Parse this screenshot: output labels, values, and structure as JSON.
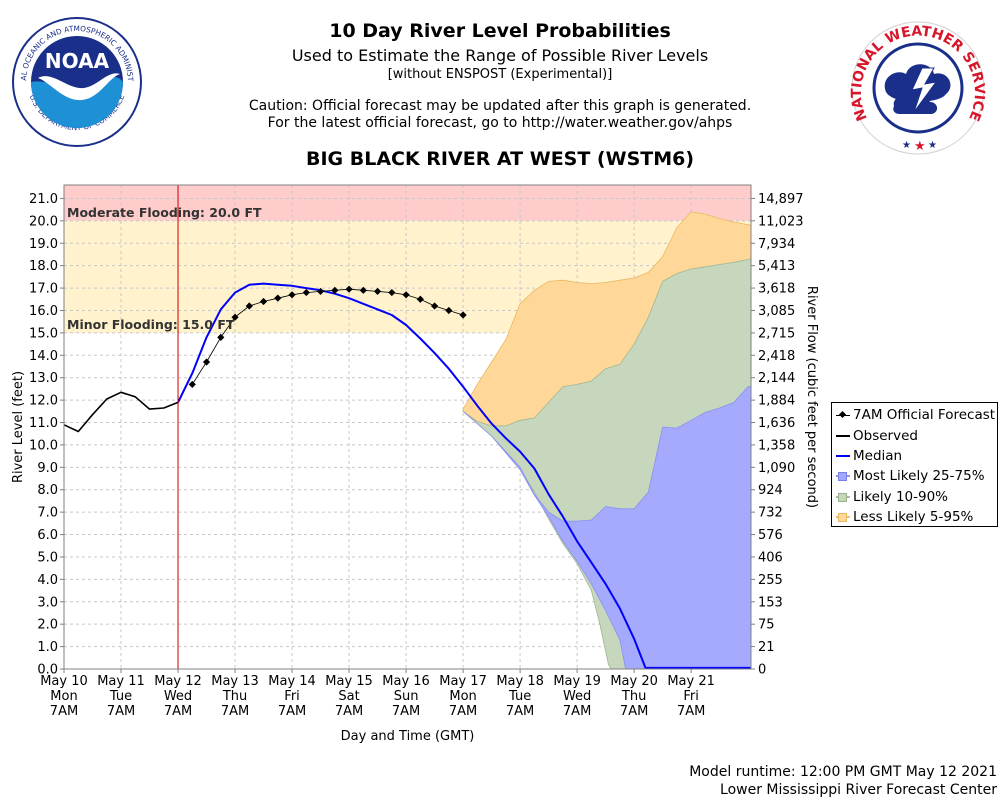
{
  "header": {
    "title": "10 Day River Level Probabilities",
    "subtitle": "Used to Estimate the Range of Possible River Levels",
    "subtitle2": "[without ENSPOST (Experimental)]",
    "caution_line1": "Caution: Official forecast may be updated after this graph is generated.",
    "caution_line2": "For the latest official forecast, go to http://water.weather.gov/ahps",
    "station": "BIG BLACK RIVER AT WEST (WSTM6)"
  },
  "logos": {
    "noaa_text": "NOAA",
    "noaa_ring_top": "NATIONAL OCEANIC AND ATMOSPHERIC ADMINISTRATION",
    "noaa_ring_bottom": "U.S. DEPARTMENT OF COMMERCE",
    "nws_ring": "NATIONAL WEATHER SERVICE"
  },
  "footer": {
    "runtime": "Model runtime: 12:00 PM GMT May 12 2021",
    "center": "Lower Mississippi River Forecast Center"
  },
  "colors": {
    "moderate_band": "#ffcccc",
    "minor_band": "#fff2cc",
    "less_likely": "#ffd799",
    "likely": "#c6d7bd",
    "most_likely": "#a3a8ff",
    "median": "#0000ff",
    "observed": "#000000",
    "official": "#000000",
    "now_line": "#cc0000"
  },
  "chart_data": {
    "type": "area",
    "xlabel": "Day and Time (GMT)",
    "ylabel": "River Level (feet)",
    "y2label": "River Flow (cubic feet per second)",
    "ylim": [
      0,
      21.6
    ],
    "xlim_days": [
      0,
      12.05
    ],
    "yticks": [
      0.0,
      1.0,
      2.0,
      3.0,
      4.0,
      5.0,
      6.0,
      7.0,
      8.0,
      9.0,
      10.0,
      11.0,
      12.0,
      13.0,
      14.0,
      15.0,
      16.0,
      17.0,
      18.0,
      19.0,
      20.0,
      21.0
    ],
    "y2ticks": [
      {
        "y": 0,
        "label": "0"
      },
      {
        "y": 1,
        "label": "21"
      },
      {
        "y": 2,
        "label": "75"
      },
      {
        "y": 3,
        "label": "153"
      },
      {
        "y": 4,
        "label": "255"
      },
      {
        "y": 5,
        "label": "406"
      },
      {
        "y": 6,
        "label": "576"
      },
      {
        "y": 7,
        "label": "732"
      },
      {
        "y": 8,
        "label": "924"
      },
      {
        "y": 9,
        "label": "1,090"
      },
      {
        "y": 10,
        "label": "1,358"
      },
      {
        "y": 11,
        "label": "1,636"
      },
      {
        "y": 12,
        "label": "1,884"
      },
      {
        "y": 13,
        "label": "2,144"
      },
      {
        "y": 14,
        "label": "2,418"
      },
      {
        "y": 15,
        "label": "2,715"
      },
      {
        "y": 16,
        "label": "3,085"
      },
      {
        "y": 17,
        "label": "3,618"
      },
      {
        "y": 18,
        "label": "5,413"
      },
      {
        "y": 19,
        "label": "7,934"
      },
      {
        "y": 20,
        "label": "11,023"
      },
      {
        "y": 21,
        "label": "14,897"
      }
    ],
    "x_ticks": [
      {
        "day": 0,
        "date": "May 10",
        "dow": "Mon",
        "time": "7AM"
      },
      {
        "day": 1,
        "date": "May 11",
        "dow": "Tue",
        "time": "7AM"
      },
      {
        "day": 2,
        "date": "May 12",
        "dow": "Wed",
        "time": "7AM"
      },
      {
        "day": 3,
        "date": "May 13",
        "dow": "Thu",
        "time": "7AM"
      },
      {
        "day": 4,
        "date": "May 14",
        "dow": "Fri",
        "time": "7AM"
      },
      {
        "day": 5,
        "date": "May 15",
        "dow": "Sat",
        "time": "7AM"
      },
      {
        "day": 6,
        "date": "May 16",
        "dow": "Sun",
        "time": "7AM"
      },
      {
        "day": 7,
        "date": "May 17",
        "dow": "Mon",
        "time": "7AM"
      },
      {
        "day": 8,
        "date": "May 18",
        "dow": "Tue",
        "time": "7AM"
      },
      {
        "day": 9,
        "date": "May 19",
        "dow": "Wed",
        "time": "7AM"
      },
      {
        "day": 10,
        "date": "May 20",
        "dow": "Thu",
        "time": "7AM"
      },
      {
        "day": 11,
        "date": "May 21",
        "dow": "Fri",
        "time": "7AM"
      }
    ],
    "now_day": 2.0,
    "flood_stages": [
      {
        "name": "Moderate Flooding",
        "label": "Moderate Flooding: 20.0 FT",
        "from": 20.0,
        "to": 21.6
      },
      {
        "name": "Minor Flooding",
        "label": "Minor Flooding: 15.0 FT",
        "from": 15.0,
        "to": 20.0
      }
    ],
    "series": [
      {
        "name": "Less Likely 5-95%",
        "kind": "band",
        "upper": [
          [
            7.0,
            11.6
          ],
          [
            7.25,
            12.7
          ],
          [
            7.5,
            13.7
          ],
          [
            7.75,
            14.7
          ],
          [
            8.0,
            16.3
          ],
          [
            8.25,
            16.9
          ],
          [
            8.5,
            17.3
          ],
          [
            8.75,
            17.35
          ],
          [
            9.0,
            17.25
          ],
          [
            9.25,
            17.2
          ],
          [
            9.5,
            17.25
          ],
          [
            9.75,
            17.35
          ],
          [
            10.0,
            17.45
          ],
          [
            10.25,
            17.7
          ],
          [
            10.5,
            18.4
          ],
          [
            10.75,
            19.7
          ],
          [
            11.0,
            20.4
          ],
          [
            11.25,
            20.3
          ],
          [
            11.5,
            20.1
          ],
          [
            11.75,
            19.95
          ],
          [
            12.05,
            19.8
          ]
        ],
        "lower": [
          [
            7.0,
            11.5
          ],
          [
            7.5,
            10.4
          ],
          [
            8.0,
            9.0
          ],
          [
            8.25,
            8.0
          ],
          [
            8.5,
            6.8
          ],
          [
            8.75,
            5.7
          ],
          [
            9.0,
            4.8
          ],
          [
            9.25,
            3.6
          ],
          [
            9.4,
            2.0
          ],
          [
            9.55,
            0.2
          ],
          [
            9.6,
            0.0
          ],
          [
            12.05,
            0.0
          ]
        ]
      },
      {
        "name": "Likely 10-90%",
        "kind": "band",
        "upper": [
          [
            7.0,
            11.5
          ],
          [
            7.25,
            11.05
          ],
          [
            7.5,
            10.85
          ],
          [
            7.75,
            10.85
          ],
          [
            8.0,
            11.1
          ],
          [
            8.25,
            11.2
          ],
          [
            8.5,
            11.9
          ],
          [
            8.75,
            12.6
          ],
          [
            9.0,
            12.7
          ],
          [
            9.25,
            12.85
          ],
          [
            9.5,
            13.4
          ],
          [
            9.75,
            13.6
          ],
          [
            10.0,
            14.5
          ],
          [
            10.25,
            15.7
          ],
          [
            10.5,
            17.3
          ],
          [
            10.75,
            17.65
          ],
          [
            11.0,
            17.85
          ],
          [
            11.25,
            17.95
          ],
          [
            11.5,
            18.05
          ],
          [
            11.75,
            18.15
          ],
          [
            12.05,
            18.3
          ]
        ],
        "lower": [
          [
            7.0,
            11.5
          ],
          [
            7.5,
            10.4
          ],
          [
            8.0,
            8.9
          ],
          [
            8.25,
            7.9
          ],
          [
            8.5,
            6.7
          ],
          [
            8.75,
            5.6
          ],
          [
            9.0,
            4.7
          ],
          [
            9.25,
            3.5
          ],
          [
            9.4,
            2.0
          ],
          [
            9.55,
            0.2
          ],
          [
            9.6,
            0.0
          ],
          [
            12.05,
            0.0
          ]
        ]
      },
      {
        "name": "Most Likely 25-75%",
        "kind": "band",
        "upper": [
          [
            7.0,
            11.5
          ],
          [
            7.5,
            10.4
          ],
          [
            8.0,
            9.0
          ],
          [
            8.25,
            7.8
          ],
          [
            8.5,
            7.0
          ],
          [
            8.75,
            6.6
          ],
          [
            9.0,
            6.6
          ],
          [
            9.25,
            6.65
          ],
          [
            9.5,
            7.25
          ],
          [
            9.75,
            7.15
          ],
          [
            10.0,
            7.15
          ],
          [
            10.25,
            7.9
          ],
          [
            10.5,
            10.8
          ],
          [
            10.75,
            10.75
          ],
          [
            11.0,
            11.1
          ],
          [
            11.25,
            11.45
          ],
          [
            11.5,
            11.65
          ],
          [
            11.75,
            11.9
          ],
          [
            12.0,
            12.6
          ],
          [
            12.05,
            12.6
          ]
        ],
        "lower": [
          [
            7.0,
            11.5
          ],
          [
            7.5,
            10.4
          ],
          [
            8.0,
            8.9
          ],
          [
            8.25,
            7.75
          ],
          [
            8.5,
            6.8
          ],
          [
            8.75,
            5.7
          ],
          [
            9.0,
            4.8
          ],
          [
            9.25,
            3.8
          ],
          [
            9.5,
            2.6
          ],
          [
            9.75,
            1.3
          ],
          [
            9.85,
            0.0
          ],
          [
            12.05,
            0.0
          ]
        ]
      },
      {
        "name": "Observed",
        "kind": "line",
        "points": [
          [
            0.0,
            10.9
          ],
          [
            0.25,
            10.6
          ],
          [
            0.5,
            11.35
          ],
          [
            0.75,
            12.05
          ],
          [
            1.0,
            12.35
          ],
          [
            1.25,
            12.15
          ],
          [
            1.5,
            11.6
          ],
          [
            1.75,
            11.65
          ],
          [
            2.0,
            11.9
          ]
        ]
      },
      {
        "name": "Median",
        "kind": "line",
        "points": [
          [
            2.0,
            11.9
          ],
          [
            2.25,
            13.2
          ],
          [
            2.5,
            14.8
          ],
          [
            2.75,
            16.05
          ],
          [
            3.0,
            16.8
          ],
          [
            3.25,
            17.15
          ],
          [
            3.5,
            17.2
          ],
          [
            3.75,
            17.15
          ],
          [
            4.0,
            17.1
          ],
          [
            4.25,
            17.0
          ],
          [
            4.5,
            16.9
          ],
          [
            4.75,
            16.75
          ],
          [
            5.0,
            16.55
          ],
          [
            5.25,
            16.3
          ],
          [
            5.5,
            16.05
          ],
          [
            5.75,
            15.8
          ],
          [
            6.0,
            15.35
          ],
          [
            6.25,
            14.75
          ],
          [
            6.5,
            14.1
          ],
          [
            6.75,
            13.4
          ],
          [
            7.0,
            12.6
          ],
          [
            7.25,
            11.75
          ],
          [
            7.5,
            10.95
          ],
          [
            7.75,
            10.3
          ],
          [
            8.0,
            9.7
          ],
          [
            8.25,
            8.95
          ],
          [
            8.5,
            7.8
          ],
          [
            8.75,
            6.8
          ],
          [
            9.0,
            5.7
          ],
          [
            9.25,
            4.75
          ],
          [
            9.5,
            3.8
          ],
          [
            9.75,
            2.7
          ],
          [
            10.0,
            1.35
          ],
          [
            10.2,
            0.05
          ],
          [
            12.05,
            0.05
          ]
        ]
      },
      {
        "name": "7AM Official Forecast",
        "kind": "markers",
        "points": [
          [
            2.25,
            12.7
          ],
          [
            2.5,
            13.7
          ],
          [
            2.75,
            14.8
          ],
          [
            3.0,
            15.7
          ],
          [
            3.25,
            16.2
          ],
          [
            3.5,
            16.4
          ],
          [
            3.75,
            16.55
          ],
          [
            4.0,
            16.7
          ],
          [
            4.25,
            16.8
          ],
          [
            4.5,
            16.85
          ],
          [
            4.75,
            16.9
          ],
          [
            5.0,
            16.95
          ],
          [
            5.25,
            16.9
          ],
          [
            5.5,
            16.85
          ],
          [
            5.75,
            16.8
          ],
          [
            6.0,
            16.7
          ],
          [
            6.25,
            16.5
          ],
          [
            6.5,
            16.2
          ],
          [
            6.75,
            16.0
          ],
          [
            7.0,
            15.8
          ]
        ]
      }
    ]
  },
  "legend": {
    "items": [
      {
        "name": "legend-official",
        "label": "7AM Official Forecast"
      },
      {
        "name": "legend-observed",
        "label": "Observed"
      },
      {
        "name": "legend-median",
        "label": "Median"
      },
      {
        "name": "legend-most-likely",
        "label": "Most Likely 25-75%"
      },
      {
        "name": "legend-likely",
        "label": "Likely 10-90%"
      },
      {
        "name": "legend-less-likely",
        "label": "Less Likely 5-95%"
      }
    ]
  }
}
